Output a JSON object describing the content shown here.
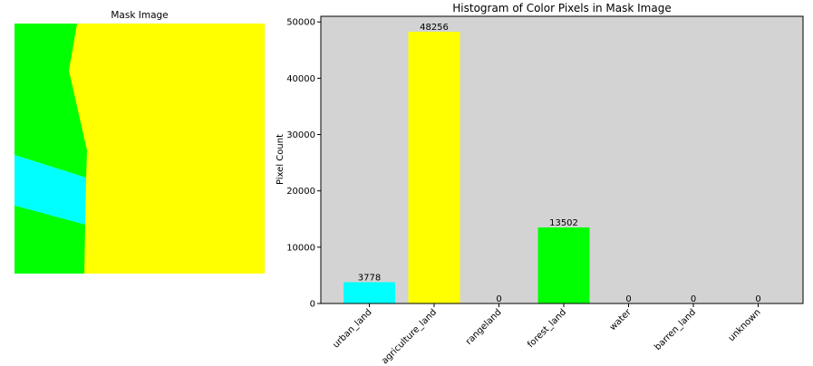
{
  "mask_panel": {
    "title": "Mask Image",
    "colors": {
      "forest": "#00ff00",
      "agriculture": "#ffff00",
      "urban": "#00ffff"
    }
  },
  "chart_data": {
    "type": "bar",
    "title": "Histogram of Color Pixels in Mask Image",
    "xlabel": "",
    "ylabel": "Pixel Count",
    "categories": [
      "urban_land",
      "agriculture_land",
      "rangeland",
      "forest_land",
      "water",
      "barren_land",
      "unknown"
    ],
    "values": [
      3778,
      48256,
      0,
      13502,
      0,
      0,
      0
    ],
    "value_labels": [
      "3778",
      "48256",
      "0",
      "13502",
      "0",
      "0",
      "0"
    ],
    "colors": [
      "#00ffff",
      "#ffff00",
      "#ffffff",
      "#00ff00",
      "#0000ff",
      "#ffffff",
      "#000000"
    ],
    "ylim": [
      0,
      51000
    ],
    "yticks": [
      0,
      10000,
      20000,
      30000,
      40000,
      50000
    ],
    "ytick_labels": [
      "0",
      "10000",
      "20000",
      "30000",
      "40000",
      "50000"
    ],
    "plot_background": "#d3d3d3",
    "grid": false,
    "legend": "none"
  }
}
